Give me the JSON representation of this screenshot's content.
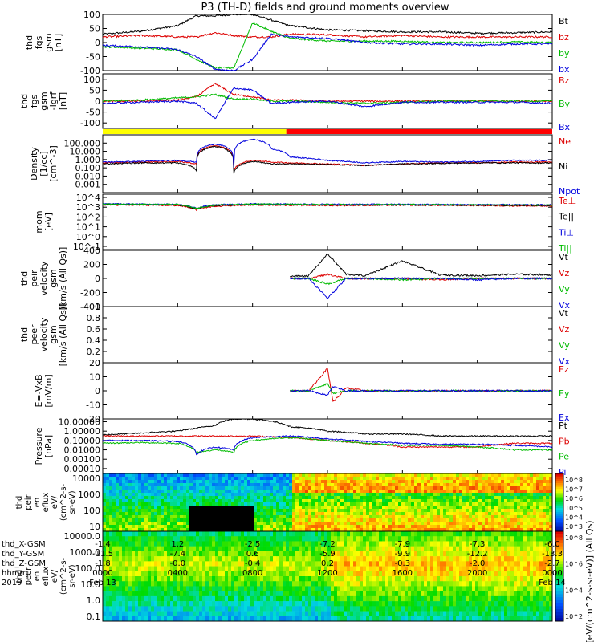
{
  "title": "P3 (TH-D) fields and ground moments overview",
  "chart_data": [
    {
      "type": "line",
      "panel": "fgs_gsm",
      "ylabel_lines": [
        "thd",
        "fgs",
        "gsm",
        "[nT]"
      ],
      "yticks": [
        100,
        50,
        0,
        -50,
        -100
      ],
      "ylim": [
        -100,
        100
      ],
      "x_hours": [
        0,
        2,
        4,
        5,
        6,
        7,
        8,
        9,
        10,
        12,
        14,
        16,
        18,
        20,
        22,
        24
      ],
      "series": [
        {
          "name": "Bt",
          "color": "#000000",
          "values": [
            30,
            40,
            60,
            95,
            95,
            100,
            100,
            80,
            60,
            45,
            42,
            38,
            38,
            33,
            35,
            38
          ]
        },
        {
          "name": "bz",
          "color": "#dd0000",
          "values": [
            20,
            25,
            20,
            20,
            35,
            25,
            20,
            20,
            30,
            28,
            20,
            25,
            20,
            20,
            20,
            20
          ]
        },
        {
          "name": "by",
          "color": "#00bb00",
          "values": [
            -15,
            -20,
            -25,
            -60,
            -90,
            -90,
            70,
            40,
            15,
            5,
            5,
            5,
            0,
            0,
            2,
            0
          ]
        },
        {
          "name": "bx",
          "color": "#0000dd",
          "values": [
            -10,
            -15,
            -25,
            -50,
            -95,
            -100,
            -60,
            30,
            20,
            15,
            0,
            -5,
            -5,
            -10,
            -5,
            -5
          ]
        }
      ]
    },
    {
      "type": "line",
      "panel": "fgs_gsm_igrf",
      "ylabel_lines": [
        "thd",
        "fgs",
        "gsm",
        "-igrf",
        "[nT]"
      ],
      "yticks": [
        100,
        50,
        0,
        -50,
        -100
      ],
      "ylim": [
        -125,
        125
      ],
      "x_hours": [
        0,
        2,
        4,
        5,
        6,
        7,
        8,
        9,
        10,
        12,
        14,
        16,
        18,
        20,
        22,
        24
      ],
      "series": [
        {
          "name": "Bz",
          "color": "#dd0000",
          "values": [
            0,
            0,
            5,
            20,
            80,
            30,
            20,
            5,
            5,
            0,
            0,
            0,
            0,
            0,
            0,
            0
          ]
        },
        {
          "name": "By",
          "color": "#00bb00",
          "values": [
            0,
            5,
            15,
            20,
            30,
            10,
            10,
            0,
            0,
            -5,
            -10,
            -5,
            0,
            0,
            0,
            0
          ]
        },
        {
          "name": "Bx",
          "color": "#0000dd",
          "values": [
            -10,
            -5,
            0,
            -10,
            -80,
            60,
            50,
            -10,
            -5,
            0,
            -25,
            -5,
            -5,
            -5,
            -5,
            -10
          ]
        }
      ]
    },
    {
      "type": "line",
      "panel": "density",
      "ylabel_lines": [
        "Density",
        "[1/cc]",
        "[cm^-3]"
      ],
      "yticks": [
        "100.000",
        "10.000",
        "1.000",
        "0.100",
        "0.010",
        "0.001"
      ],
      "log": true,
      "ylim": [
        0.0001,
        1000
      ],
      "x_hours": [
        0,
        2,
        4,
        5,
        6,
        7,
        8,
        9,
        10,
        12,
        14,
        16,
        18,
        20,
        22,
        24
      ],
      "series": [
        {
          "name": "Ne",
          "color": "#dd0000",
          "values": [
            0.4,
            0.5,
            0.6,
            0.3,
            50,
            0.05,
            0.8,
            0.5,
            0.4,
            0.3,
            0.2,
            0.3,
            0.4,
            0.4,
            0.5,
            0.5
          ]
        },
        {
          "name": "Ni",
          "color": "#000000",
          "values": [
            0.3,
            0.4,
            0.4,
            0.05,
            40,
            0.02,
            0.6,
            0.3,
            0.3,
            0.25,
            0.2,
            0.3,
            0.35,
            0.4,
            0.4,
            0.4
          ]
        },
        {
          "name": "Npot",
          "color": "#0000dd",
          "values": [
            0.5,
            0.6,
            0.8,
            0.5,
            80,
            0.1,
            300,
            20,
            2,
            0.8,
            0.4,
            0.6,
            0.5,
            0.6,
            0.8,
            0.8
          ]
        }
      ]
    },
    {
      "type": "line",
      "panel": "temperature",
      "ylabel_lines": [
        "mom",
        "[eV]"
      ],
      "ytick_labels": [
        "10^4",
        "10^3",
        "10^2",
        "10^1",
        "10^0",
        "10^-1"
      ],
      "log": true,
      "ylim": [
        0.01,
        10000
      ],
      "x_hours": [
        0,
        4,
        5,
        6,
        8,
        12,
        16,
        20,
        24
      ],
      "series": [
        {
          "name": "Te⊥",
          "color": "#dd0000",
          "values": [
            700,
            600,
            200,
            500,
            700,
            600,
            650,
            600,
            500
          ]
        },
        {
          "name": "Te||",
          "color": "#000000",
          "values": [
            800,
            700,
            250,
            600,
            800,
            700,
            700,
            650,
            600
          ]
        },
        {
          "name": "Ti⊥",
          "color": "#0000dd",
          "values": [
            900,
            800,
            300,
            700,
            900,
            800,
            800,
            750,
            700
          ]
        },
        {
          "name": "Ti||",
          "color": "#00bb00",
          "values": [
            850,
            750,
            280,
            650,
            850,
            750,
            750,
            700,
            650
          ]
        }
      ]
    },
    {
      "type": "line",
      "panel": "peir_velocity",
      "ylabel_lines": [
        "thd",
        "peir",
        "velocity",
        "gsm",
        "[km/s (All Qs)]"
      ],
      "yticks": [
        400,
        200,
        0,
        -200,
        -400
      ],
      "ylim": [
        -400,
        400
      ],
      "data_start_hour": 10,
      "x_hours": [
        10,
        11,
        12,
        13,
        14,
        16,
        18,
        20,
        22,
        24
      ],
      "series": [
        {
          "name": "Vt",
          "color": "#000000",
          "values": [
            30,
            40,
            350,
            60,
            40,
            250,
            50,
            40,
            60,
            50
          ]
        },
        {
          "name": "Vz",
          "color": "#dd0000",
          "values": [
            0,
            0,
            60,
            0,
            0,
            0,
            -20,
            0,
            0,
            0
          ]
        },
        {
          "name": "Vy",
          "color": "#00bb00",
          "values": [
            0,
            0,
            -80,
            0,
            0,
            -20,
            0,
            0,
            0,
            0
          ]
        },
        {
          "name": "Vx",
          "color": "#0000dd",
          "values": [
            0,
            0,
            -280,
            0,
            0,
            0,
            0,
            -20,
            0,
            0
          ]
        }
      ]
    },
    {
      "type": "line",
      "panel": "peer_velocity",
      "ylabel_lines": [
        "thd",
        "peer",
        "velocity",
        "gsm",
        "[km/s (All Qs)]"
      ],
      "yticks": [
        1.0,
        0.8,
        0.6,
        0.4,
        0.2,
        0.0
      ],
      "ylim": [
        0,
        1
      ],
      "series": [
        {
          "name": "Vt",
          "color": "#000000",
          "values": []
        },
        {
          "name": "Vz",
          "color": "#dd0000",
          "values": []
        },
        {
          "name": "Vy",
          "color": "#00bb00",
          "values": []
        },
        {
          "name": "Vx",
          "color": "#0000dd",
          "values": []
        }
      ]
    },
    {
      "type": "line",
      "panel": "efield",
      "ylabel_lines": [
        "E=-VxB",
        "[mV/m]"
      ],
      "yticks": [
        20,
        10,
        0,
        -10,
        -20
      ],
      "ylim": [
        -20,
        20
      ],
      "data_start_hour": 10,
      "x_hours": [
        10,
        11,
        12,
        12.3,
        13,
        14,
        16,
        18,
        20,
        22,
        24
      ],
      "series": [
        {
          "name": "Ez",
          "color": "#dd0000",
          "values": [
            0,
            0,
            16,
            -8,
            2,
            0,
            0,
            0,
            0,
            0,
            0
          ]
        },
        {
          "name": "Ey",
          "color": "#00bb00",
          "values": [
            0,
            0,
            5,
            -2,
            0,
            0,
            0,
            0,
            0,
            0,
            0
          ]
        },
        {
          "name": "Ex",
          "color": "#0000dd",
          "values": [
            0,
            0,
            -3,
            3,
            0,
            0,
            0,
            0,
            0,
            0,
            0
          ]
        }
      ]
    },
    {
      "type": "line",
      "panel": "pressure",
      "ylabel_lines": [
        "Pressure",
        "[nPa]"
      ],
      "yticks": [
        "10.00000",
        "1.00000",
        "0.10000",
        "0.01000",
        "0.00100",
        "0.00010"
      ],
      "log": true,
      "ylim": [
        3e-05,
        20
      ],
      "x_hours": [
        0,
        2,
        4,
        5,
        6,
        7,
        8,
        10,
        12,
        14,
        16,
        18,
        20,
        22,
        24
      ],
      "series": [
        {
          "name": "Pt",
          "color": "#000000",
          "values": [
            0.4,
            0.6,
            1.0,
            2.0,
            4.0,
            20,
            20,
            3.0,
            1.0,
            0.5,
            0.5,
            0.3,
            0.3,
            0.3,
            0.3
          ]
        },
        {
          "name": "Pb",
          "color": "#dd0000",
          "values": [
            0.3,
            0.3,
            0.3,
            0.3,
            0.3,
            0.3,
            0.3,
            0.2,
            0.1,
            0.05,
            0.02,
            0.02,
            0.02,
            0.05,
            0.05
          ]
        },
        {
          "name": "Pe",
          "color": "#00bb00",
          "values": [
            0.05,
            0.06,
            0.05,
            0.005,
            0.01,
            0.005,
            0.1,
            0.2,
            0.1,
            0.05,
            0.03,
            0.03,
            0.02,
            0.01,
            0.01
          ]
        },
        {
          "name": "Pi",
          "color": "#0000dd",
          "values": [
            0.1,
            0.1,
            0.08,
            0.003,
            0.02,
            0.01,
            0.2,
            0.3,
            0.15,
            0.08,
            0.05,
            0.04,
            0.04,
            0.03,
            0.02
          ]
        }
      ]
    },
    {
      "type": "heatmap",
      "panel": "peir_en_eflux",
      "ylabel_lines": [
        "thd",
        "peir",
        "en",
        "eflux",
        "eV/",
        "(cm^2-s-",
        "sr-eV)"
      ],
      "yticks": [
        "10000",
        "1000",
        "100",
        "10"
      ],
      "colorbar_ticks": [
        "10^8",
        "10^7",
        "10^6",
        "10^5",
        "10^4",
        "10^3"
      ]
    },
    {
      "type": "heatmap",
      "panel": "peer_en_eflux",
      "ylabel_lines": [
        "thd",
        "peer",
        "en",
        "eflux",
        "eV/",
        "(cm^2-s-",
        "sr-eV)"
      ],
      "yticks": [
        "10000.0",
        "1000.0",
        "100.0",
        "10.0",
        "1.0",
        "0.1"
      ],
      "colorbar_ticks": [
        "10^8",
        "10^6",
        "10^4",
        "10^2"
      ]
    }
  ],
  "colorbar_label": "[eV/(cm^2-s-sr-eV)] (All Qs)",
  "mode_bar": {
    "colors": [
      "#ffff00",
      "#ff0000"
    ],
    "switch_hour": 9.8
  },
  "x_axis": {
    "rows": [
      {
        "label": "thd_X-GSM",
        "values": [
          "-1.4",
          "1.2",
          "-2.5",
          "-7.2",
          "-7.9",
          "-7.3",
          "-6.0"
        ]
      },
      {
        "label": "thd_Y-GSM",
        "values": [
          "-11.5",
          "-7.4",
          "0.6",
          "-5.9",
          "-9.9",
          "-12.2",
          "-13.3"
        ]
      },
      {
        "label": "thd_Z-GSM",
        "values": [
          "-1.8",
          "-0.0",
          "-0.4",
          "0.2",
          "-0.3",
          "-2.0",
          "-2.7"
        ]
      },
      {
        "label": "hhmm",
        "values": [
          "0000",
          "0400",
          "0800",
          "1200",
          "1600",
          "2000",
          "0000"
        ]
      }
    ],
    "date_row": {
      "year": "2019",
      "start": "Feb 13",
      "end": "Feb 14"
    }
  }
}
